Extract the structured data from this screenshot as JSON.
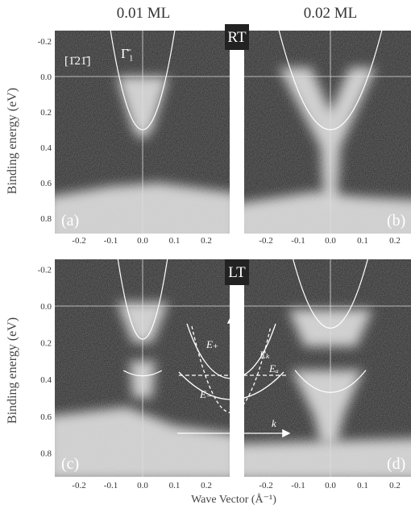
{
  "figure": {
    "column_titles": [
      "0.01 ML",
      "0.02 ML"
    ],
    "row_tags": [
      "RT",
      "LT"
    ],
    "y_axis_label": "Binding energy (eV)",
    "x_axis_label": "Wave Vector (Å⁻¹)",
    "direction_label": "[1̄21̄]",
    "point_label": "Γ̄₁",
    "panels": [
      {
        "label": "(a)"
      },
      {
        "label": "(b)"
      },
      {
        "label": "(c)"
      },
      {
        "label": "(d)"
      }
    ],
    "y_ticks": [
      "-0.2",
      "0.0",
      "0.2",
      "0.4",
      "0.6",
      "0.8"
    ],
    "x_ticks": [
      "-0.2",
      "-0.1",
      "0.0",
      "0.1",
      "0.2"
    ],
    "inset": {
      "energy_axis": "E",
      "momentum_axis": "k",
      "upper_band": "E₊",
      "lower_band": "E₋",
      "free_band": "Eₖ",
      "adatom_level": "Eₐ"
    }
  }
}
